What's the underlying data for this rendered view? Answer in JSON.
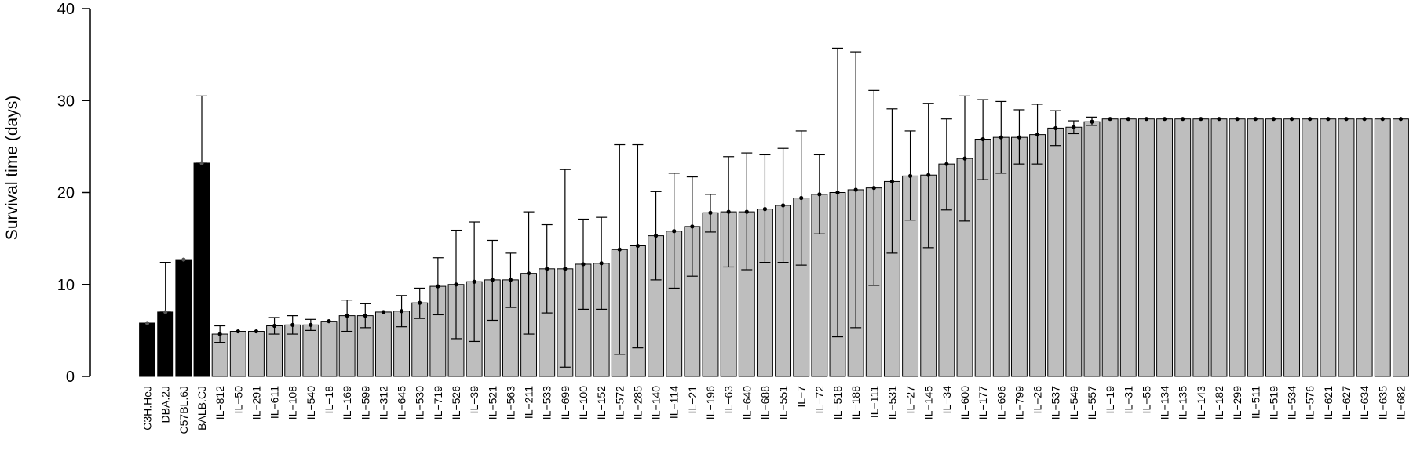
{
  "chart_data": {
    "type": "bar",
    "title": "",
    "xlabel": "",
    "ylabel": "Survival time (days)",
    "ylim": [
      0,
      40
    ],
    "yticks": [
      0,
      10,
      20,
      30,
      40
    ],
    "grid": false,
    "legend": "none",
    "colors": {
      "parental": "#000000",
      "il": "#bebebe",
      "stroke": "#000000"
    },
    "bars": [
      {
        "label": "C3H.HeJ",
        "value": 5.8,
        "lo": 5.8,
        "hi": 5.8,
        "group": "parental"
      },
      {
        "label": "DBA.2J",
        "value": 7.0,
        "lo": 7.0,
        "hi": 12.4,
        "group": "parental"
      },
      {
        "label": "C57BL.6J",
        "value": 12.7,
        "lo": 12.7,
        "hi": 12.7,
        "group": "parental"
      },
      {
        "label": "BALB.CJ",
        "value": 23.2,
        "lo": 23.2,
        "hi": 30.5,
        "group": "parental"
      },
      {
        "label": "IL−812",
        "value": 4.6,
        "lo": 3.7,
        "hi": 5.5,
        "group": "il"
      },
      {
        "label": "IL−50",
        "value": 4.9,
        "lo": 4.9,
        "hi": 4.9,
        "group": "il"
      },
      {
        "label": "IL−291",
        "value": 4.9,
        "lo": 4.9,
        "hi": 4.9,
        "group": "il"
      },
      {
        "label": "IL−611",
        "value": 5.5,
        "lo": 4.6,
        "hi": 6.4,
        "group": "il"
      },
      {
        "label": "IL−108",
        "value": 5.6,
        "lo": 4.6,
        "hi": 6.6,
        "group": "il"
      },
      {
        "label": "IL−540",
        "value": 5.6,
        "lo": 5.0,
        "hi": 6.2,
        "group": "il"
      },
      {
        "label": "IL−18",
        "value": 6.0,
        "lo": 6.0,
        "hi": 6.0,
        "group": "il"
      },
      {
        "label": "IL−169",
        "value": 6.6,
        "lo": 4.9,
        "hi": 8.3,
        "group": "il"
      },
      {
        "label": "IL−599",
        "value": 6.6,
        "lo": 5.3,
        "hi": 7.9,
        "group": "il"
      },
      {
        "label": "IL−312",
        "value": 7.0,
        "lo": 7.0,
        "hi": 7.0,
        "group": "il"
      },
      {
        "label": "IL−645",
        "value": 7.1,
        "lo": 5.4,
        "hi": 8.8,
        "group": "il"
      },
      {
        "label": "IL−530",
        "value": 8.0,
        "lo": 6.3,
        "hi": 9.6,
        "group": "il"
      },
      {
        "label": "IL−719",
        "value": 9.8,
        "lo": 6.7,
        "hi": 12.9,
        "group": "il"
      },
      {
        "label": "IL−526",
        "value": 10.0,
        "lo": 4.1,
        "hi": 15.9,
        "group": "il"
      },
      {
        "label": "IL−39",
        "value": 10.3,
        "lo": 3.8,
        "hi": 16.8,
        "group": "il"
      },
      {
        "label": "IL−521",
        "value": 10.5,
        "lo": 6.1,
        "hi": 14.8,
        "group": "il"
      },
      {
        "label": "IL−563",
        "value": 10.5,
        "lo": 7.5,
        "hi": 13.4,
        "group": "il"
      },
      {
        "label": "IL−211",
        "value": 11.2,
        "lo": 4.6,
        "hi": 17.9,
        "group": "il"
      },
      {
        "label": "IL−533",
        "value": 11.7,
        "lo": 6.9,
        "hi": 16.5,
        "group": "il"
      },
      {
        "label": "IL−699",
        "value": 11.7,
        "lo": 1.0,
        "hi": 22.5,
        "group": "il"
      },
      {
        "label": "IL−100",
        "value": 12.2,
        "lo": 7.3,
        "hi": 17.1,
        "group": "il"
      },
      {
        "label": "IL−152",
        "value": 12.3,
        "lo": 7.3,
        "hi": 17.3,
        "group": "il"
      },
      {
        "label": "IL−572",
        "value": 13.8,
        "lo": 2.4,
        "hi": 25.2,
        "group": "il"
      },
      {
        "label": "IL−285",
        "value": 14.2,
        "lo": 3.1,
        "hi": 25.2,
        "group": "il"
      },
      {
        "label": "IL−140",
        "value": 15.3,
        "lo": 10.5,
        "hi": 20.1,
        "group": "il"
      },
      {
        "label": "IL−114",
        "value": 15.8,
        "lo": 9.6,
        "hi": 22.1,
        "group": "il"
      },
      {
        "label": "IL−21",
        "value": 16.3,
        "lo": 10.9,
        "hi": 21.7,
        "group": "il"
      },
      {
        "label": "IL−196",
        "value": 17.8,
        "lo": 15.7,
        "hi": 19.8,
        "group": "il"
      },
      {
        "label": "IL−63",
        "value": 17.9,
        "lo": 11.9,
        "hi": 23.9,
        "group": "il"
      },
      {
        "label": "IL−640",
        "value": 17.9,
        "lo": 11.6,
        "hi": 24.3,
        "group": "il"
      },
      {
        "label": "IL−688",
        "value": 18.2,
        "lo": 12.4,
        "hi": 24.1,
        "group": "il"
      },
      {
        "label": "IL−551",
        "value": 18.6,
        "lo": 12.4,
        "hi": 24.8,
        "group": "il"
      },
      {
        "label": "IL−7",
        "value": 19.4,
        "lo": 12.1,
        "hi": 26.7,
        "group": "il"
      },
      {
        "label": "IL−72",
        "value": 19.8,
        "lo": 15.5,
        "hi": 24.1,
        "group": "il"
      },
      {
        "label": "IL−518",
        "value": 20.0,
        "lo": 4.3,
        "hi": 35.7,
        "group": "il"
      },
      {
        "label": "IL−188",
        "value": 20.3,
        "lo": 5.3,
        "hi": 35.3,
        "group": "il"
      },
      {
        "label": "IL−111",
        "value": 20.5,
        "lo": 9.9,
        "hi": 31.1,
        "group": "il"
      },
      {
        "label": "IL−531",
        "value": 21.2,
        "lo": 13.4,
        "hi": 29.1,
        "group": "il"
      },
      {
        "label": "IL−27",
        "value": 21.8,
        "lo": 17.0,
        "hi": 26.7,
        "group": "il"
      },
      {
        "label": "IL−145",
        "value": 21.9,
        "lo": 14.0,
        "hi": 29.7,
        "group": "il"
      },
      {
        "label": "IL−34",
        "value": 23.1,
        "lo": 18.1,
        "hi": 28.0,
        "group": "il"
      },
      {
        "label": "IL−600",
        "value": 23.7,
        "lo": 16.9,
        "hi": 30.5,
        "group": "il"
      },
      {
        "label": "IL−177",
        "value": 25.8,
        "lo": 21.4,
        "hi": 30.1,
        "group": "il"
      },
      {
        "label": "IL−696",
        "value": 26.0,
        "lo": 22.1,
        "hi": 29.9,
        "group": "il"
      },
      {
        "label": "IL−799",
        "value": 26.0,
        "lo": 23.1,
        "hi": 29.0,
        "group": "il"
      },
      {
        "label": "IL−26",
        "value": 26.3,
        "lo": 23.1,
        "hi": 29.6,
        "group": "il"
      },
      {
        "label": "IL−537",
        "value": 27.0,
        "lo": 25.1,
        "hi": 28.9,
        "group": "il"
      },
      {
        "label": "IL−549",
        "value": 27.1,
        "lo": 26.4,
        "hi": 27.8,
        "group": "il"
      },
      {
        "label": "IL−557",
        "value": 27.7,
        "lo": 27.3,
        "hi": 28.2,
        "group": "il"
      },
      {
        "label": "IL−19",
        "value": 28.0,
        "lo": 28.0,
        "hi": 28.0,
        "group": "il"
      },
      {
        "label": "IL−31",
        "value": 28.0,
        "lo": 28.0,
        "hi": 28.0,
        "group": "il"
      },
      {
        "label": "IL−55",
        "value": 28.0,
        "lo": 28.0,
        "hi": 28.0,
        "group": "il"
      },
      {
        "label": "IL−134",
        "value": 28.0,
        "lo": 28.0,
        "hi": 28.0,
        "group": "il"
      },
      {
        "label": "IL−135",
        "value": 28.0,
        "lo": 28.0,
        "hi": 28.0,
        "group": "il"
      },
      {
        "label": "IL−143",
        "value": 28.0,
        "lo": 28.0,
        "hi": 28.0,
        "group": "il"
      },
      {
        "label": "IL−182",
        "value": 28.0,
        "lo": 28.0,
        "hi": 28.0,
        "group": "il"
      },
      {
        "label": "IL−299",
        "value": 28.0,
        "lo": 28.0,
        "hi": 28.0,
        "group": "il"
      },
      {
        "label": "IL−511",
        "value": 28.0,
        "lo": 28.0,
        "hi": 28.0,
        "group": "il"
      },
      {
        "label": "IL−519",
        "value": 28.0,
        "lo": 28.0,
        "hi": 28.0,
        "group": "il"
      },
      {
        "label": "IL−534",
        "value": 28.0,
        "lo": 28.0,
        "hi": 28.0,
        "group": "il"
      },
      {
        "label": "IL−576",
        "value": 28.0,
        "lo": 28.0,
        "hi": 28.0,
        "group": "il"
      },
      {
        "label": "IL−621",
        "value": 28.0,
        "lo": 28.0,
        "hi": 28.0,
        "group": "il"
      },
      {
        "label": "IL−627",
        "value": 28.0,
        "lo": 28.0,
        "hi": 28.0,
        "group": "il"
      },
      {
        "label": "IL−634",
        "value": 28.0,
        "lo": 28.0,
        "hi": 28.0,
        "group": "il"
      },
      {
        "label": "IL−635",
        "value": 28.0,
        "lo": 28.0,
        "hi": 28.0,
        "group": "il"
      },
      {
        "label": "IL−682",
        "value": 28.0,
        "lo": 28.0,
        "hi": 28.0,
        "group": "il"
      }
    ]
  }
}
